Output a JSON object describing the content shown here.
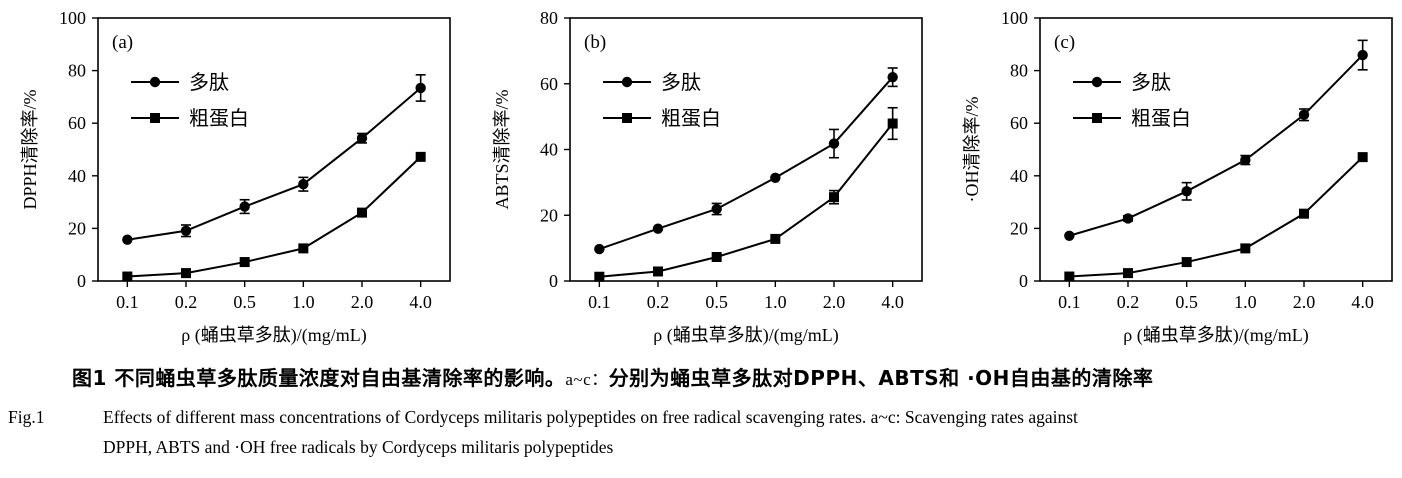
{
  "chart_data": [
    {
      "type": "line",
      "panel_label": "(a)",
      "categories": [
        "0.1",
        "0.2",
        "0.5",
        "1.0",
        "2.0",
        "4.0"
      ],
      "ylabel": "DPPH清除率/%",
      "xlabel": "ρ (蛹虫草多肽)/(mg/mL)",
      "ylim": [
        0,
        100
      ],
      "yticks": [
        0,
        20,
        40,
        60,
        80,
        100
      ],
      "legend_placement": "top-left",
      "series": [
        {
          "name": "多肽",
          "marker": "circle",
          "values": [
            15.7,
            19.1,
            28.3,
            36.8,
            54.3,
            73.4
          ],
          "errors": [
            0.6,
            2.2,
            2.6,
            2.6,
            1.8,
            5.0
          ]
        },
        {
          "name": "粗蛋白",
          "marker": "square",
          "values": [
            1.7,
            3.0,
            7.2,
            12.4,
            26.0,
            47.2
          ],
          "errors": [
            0,
            0,
            0,
            0,
            0,
            0
          ]
        }
      ]
    },
    {
      "type": "line",
      "panel_label": "(b)",
      "categories": [
        "0.1",
        "0.2",
        "0.5",
        "1.0",
        "2.0",
        "4.0"
      ],
      "ylabel": "ABTS清除率/%",
      "xlabel": "ρ (蛹虫草多肽)/(mg/mL)",
      "ylim": [
        0,
        80
      ],
      "yticks": [
        0,
        20,
        40,
        60,
        80
      ],
      "legend_placement": "top-left",
      "series": [
        {
          "name": "多肽",
          "marker": "circle",
          "values": [
            9.7,
            15.9,
            21.9,
            31.4,
            41.8,
            62.0
          ],
          "errors": [
            0.5,
            0.8,
            1.7,
            0.8,
            4.3,
            2.8
          ]
        },
        {
          "name": "粗蛋白",
          "marker": "square",
          "values": [
            1.3,
            2.9,
            7.3,
            12.8,
            25.5,
            47.9
          ],
          "errors": [
            0,
            0,
            0,
            0,
            2.0,
            4.8
          ]
        }
      ]
    },
    {
      "type": "line",
      "panel_label": "(c)",
      "categories": [
        "0.1",
        "0.2",
        "0.5",
        "1.0",
        "2.0",
        "4.0"
      ],
      "ylabel": "·OH清除率/%",
      "xlabel": "ρ (蛹虫草多肽)/(mg/mL)",
      "ylim": [
        0,
        100
      ],
      "yticks": [
        0,
        20,
        40,
        60,
        80,
        100
      ],
      "legend_placement": "top-left",
      "series": [
        {
          "name": "多肽",
          "marker": "circle",
          "values": [
            17.2,
            23.8,
            34.1,
            46.0,
            63.2,
            85.9
          ],
          "errors": [
            0.6,
            1.0,
            3.3,
            1.7,
            2.2,
            5.6
          ]
        },
        {
          "name": "粗蛋白",
          "marker": "square",
          "values": [
            1.7,
            3.0,
            7.2,
            12.4,
            25.6,
            47.1
          ],
          "errors": [
            0,
            0,
            0,
            0,
            0,
            0
          ]
        }
      ]
    }
  ],
  "caption": {
    "zh_prefix": "图1  不同蛹虫草多肽质量浓度对自由基清除率的影响。",
    "zh_sub": "a~c：",
    "zh_rest": "分别为蛹虫草多肽对DPPH、ABTS和 ·OH自由基的清除率",
    "en_label": "Fig.1",
    "en_line1": "Effects of different mass concentrations of Cordyceps militaris polypeptides on free radical scavenging rates. a~c: Scavenging rates against",
    "en_line2": "DPPH, ABTS and ·OH free radicals by Cordyceps militaris polypeptides"
  }
}
